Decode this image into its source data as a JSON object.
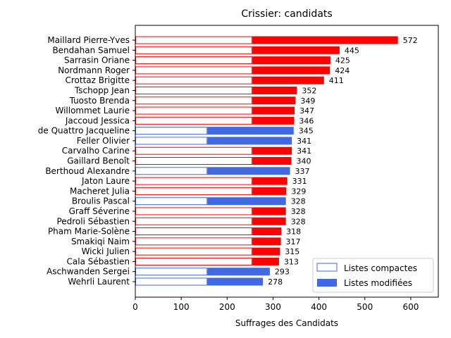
{
  "chart_data": {
    "type": "bar",
    "orientation": "horizontal",
    "title": "Crissier: candidats",
    "xlabel": "Suffrages des Candidats",
    "ylabel": "",
    "xlim": [
      0,
      660
    ],
    "xticks": [
      0,
      100,
      200,
      300,
      400,
      500,
      600
    ],
    "grid": false,
    "legend_position": "lower-right",
    "colors": {
      "red": "#ff0000",
      "blue": "#4169e1"
    },
    "legend": [
      {
        "label": "Listes compactes",
        "style": "outline",
        "color": "#4169e1"
      },
      {
        "label": "Listes modifiées",
        "style": "filled",
        "color": "#4169e1"
      }
    ],
    "candidates": [
      {
        "name": "Maillard Pierre-Yves",
        "total": 572,
        "compact": 255,
        "color": "red"
      },
      {
        "name": "Bendahan Samuel",
        "total": 445,
        "compact": 255,
        "color": "red"
      },
      {
        "name": "Sarrasin Oriane",
        "total": 425,
        "compact": 255,
        "color": "red"
      },
      {
        "name": "Nordmann Roger",
        "total": 424,
        "compact": 255,
        "color": "red"
      },
      {
        "name": "Crottaz Brigitte",
        "total": 411,
        "compact": 255,
        "color": "red"
      },
      {
        "name": "Tschopp Jean",
        "total": 352,
        "compact": 255,
        "color": "red"
      },
      {
        "name": "Tuosto Brenda",
        "total": 349,
        "compact": 255,
        "color": "red"
      },
      {
        "name": "Willommet Laurie",
        "total": 347,
        "compact": 255,
        "color": "red"
      },
      {
        "name": "Jaccoud Jessica",
        "total": 346,
        "compact": 255,
        "color": "red"
      },
      {
        "name": "de Quattro Jacqueline",
        "total": 345,
        "compact": 157,
        "color": "blue"
      },
      {
        "name": "Feller Olivier",
        "total": 341,
        "compact": 157,
        "color": "blue"
      },
      {
        "name": "Carvalho Carine",
        "total": 341,
        "compact": 255,
        "color": "red"
      },
      {
        "name": "Gaillard Benoît",
        "total": 340,
        "compact": 255,
        "color": "red"
      },
      {
        "name": "Berthoud Alexandre",
        "total": 337,
        "compact": 157,
        "color": "blue"
      },
      {
        "name": "Jaton Laure",
        "total": 331,
        "compact": 255,
        "color": "red"
      },
      {
        "name": "Macheret Julia",
        "total": 329,
        "compact": 255,
        "color": "red"
      },
      {
        "name": "Broulis Pascal",
        "total": 328,
        "compact": 157,
        "color": "blue"
      },
      {
        "name": "Graff Séverine",
        "total": 328,
        "compact": 255,
        "color": "red"
      },
      {
        "name": "Pedroli Sébastien",
        "total": 328,
        "compact": 255,
        "color": "red"
      },
      {
        "name": "Pham Marie-Solène",
        "total": 318,
        "compact": 255,
        "color": "red"
      },
      {
        "name": "Smakiqi Naim",
        "total": 317,
        "compact": 255,
        "color": "red"
      },
      {
        "name": "Wicki Julien",
        "total": 315,
        "compact": 255,
        "color": "red"
      },
      {
        "name": "Cala Sébastien",
        "total": 313,
        "compact": 255,
        "color": "red"
      },
      {
        "name": "Aschwanden Sergei",
        "total": 293,
        "compact": 157,
        "color": "blue"
      },
      {
        "name": "Wehrli Laurent",
        "total": 278,
        "compact": 157,
        "color": "blue"
      }
    ]
  }
}
